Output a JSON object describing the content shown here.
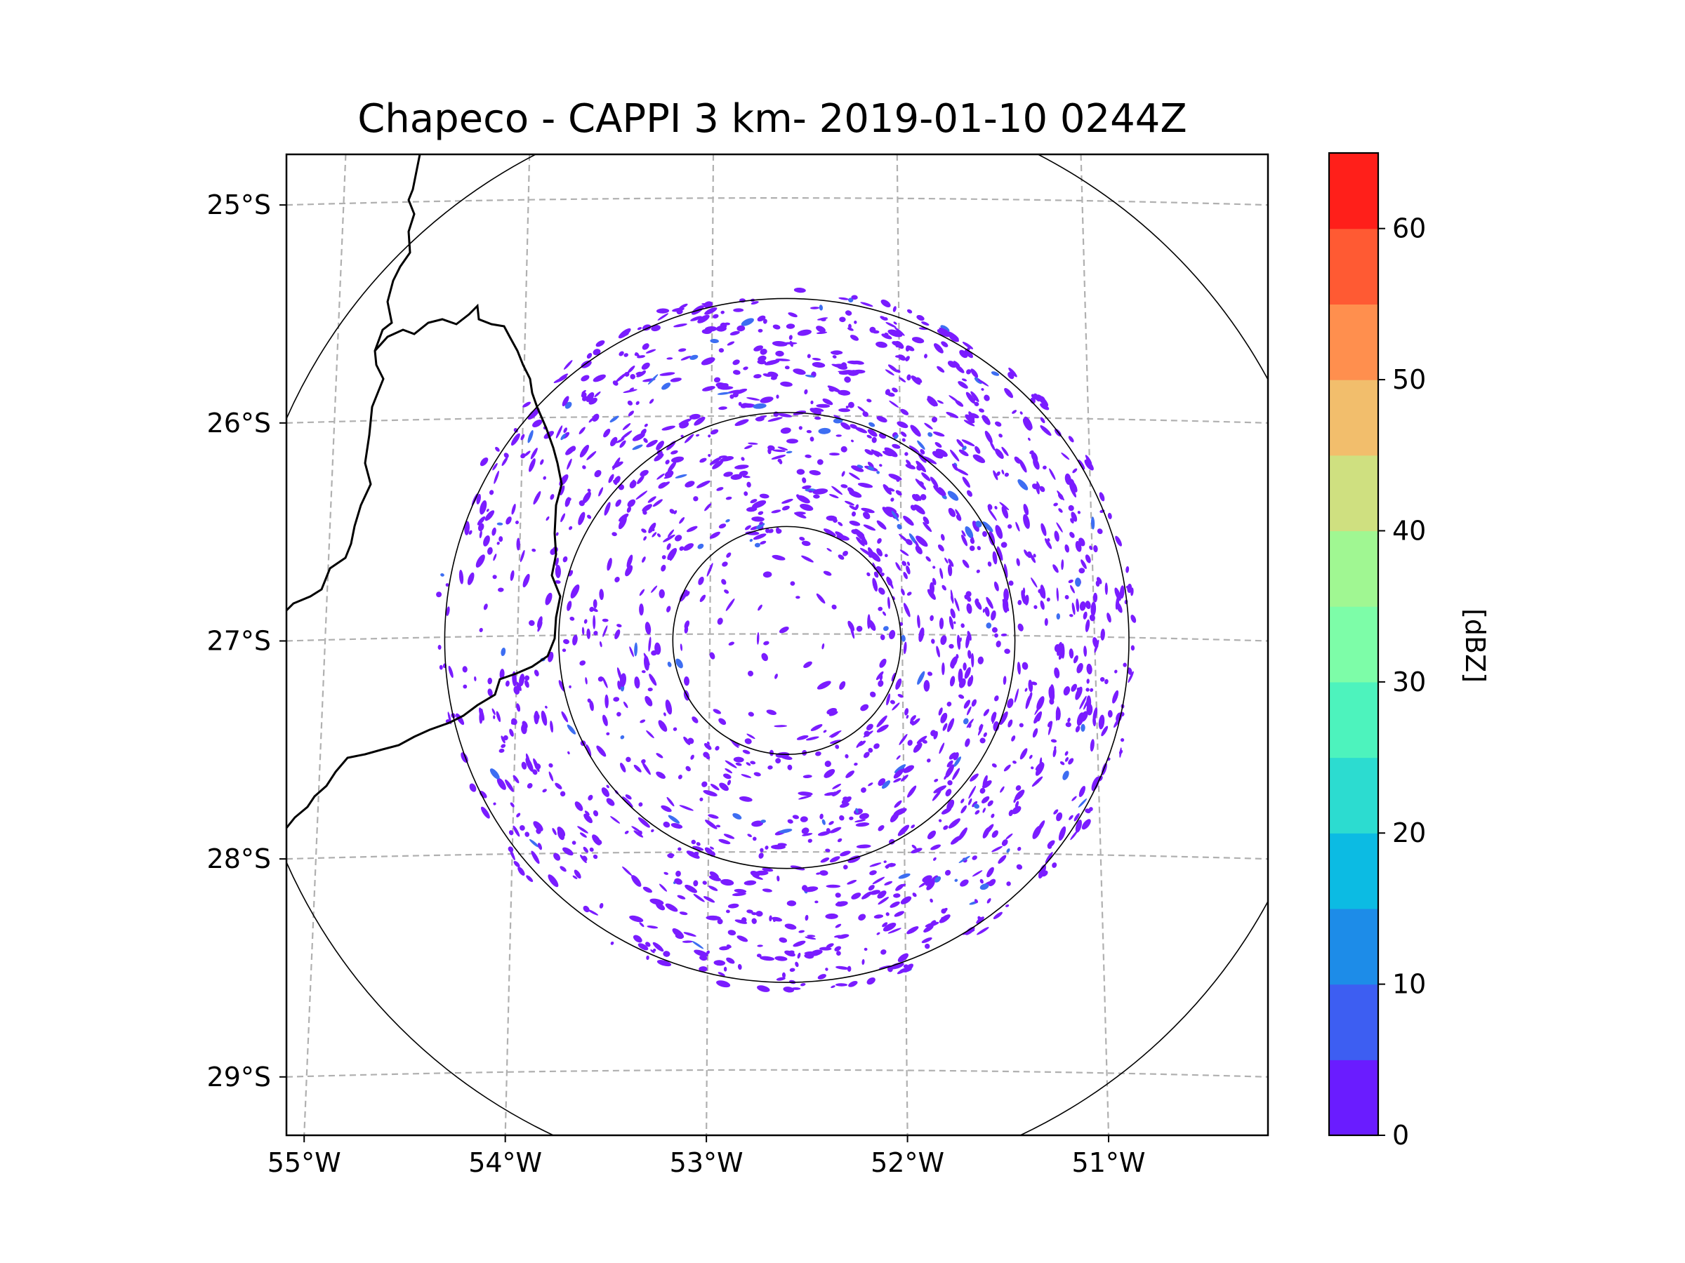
{
  "chart_data": {
    "type": "heatmap",
    "title": "Chapeco - CAPPI 3 km- 2019-01-10 0244Z",
    "x_axis": {
      "ticks": [
        "55°W",
        "54°W",
        "53°W",
        "52°W",
        "51°W"
      ],
      "range": [
        -55.2,
        -50.1
      ]
    },
    "y_axis": {
      "ticks": [
        "25°S",
        "26°S",
        "27°S",
        "28°S",
        "29°S"
      ],
      "range": [
        -29.3,
        -24.8
      ]
    },
    "radar_center": {
      "lon": -52.6,
      "lat": -27.03
    },
    "range_rings_km": [
      50,
      100,
      150,
      240
    ],
    "grid": true,
    "colorbar": {
      "label": "[dBZ]",
      "ticks": [
        "0",
        "10",
        "20",
        "30",
        "40",
        "50",
        "60"
      ],
      "range": [
        0,
        65
      ],
      "bins": [
        {
          "from": 0,
          "to": 5,
          "color": "#6a1cff"
        },
        {
          "from": 5,
          "to": 10,
          "color": "#3d5ef2"
        },
        {
          "from": 10,
          "to": 15,
          "color": "#1d8ce8"
        },
        {
          "from": 15,
          "to": 20,
          "color": "#0cbbe3"
        },
        {
          "from": 20,
          "to": 25,
          "color": "#2cdcd0"
        },
        {
          "from": 25,
          "to": 30,
          "color": "#4df3bd"
        },
        {
          "from": 30,
          "to": 35,
          "color": "#7dfda8"
        },
        {
          "from": 35,
          "to": 40,
          "color": "#a0f792"
        },
        {
          "from": 40,
          "to": 45,
          "color": "#cfe080"
        },
        {
          "from": 45,
          "to": 50,
          "color": "#f2be6c"
        },
        {
          "from": 50,
          "to": 55,
          "color": "#ff8f4e"
        },
        {
          "from": 55,
          "to": 60,
          "color": "#ff5a33"
        },
        {
          "from": 60,
          "to": 65,
          "color": "#ff1f1a"
        }
      ]
    },
    "echo_color": "#7a1cff",
    "echo_color_secondary": "#3d6ef2"
  }
}
